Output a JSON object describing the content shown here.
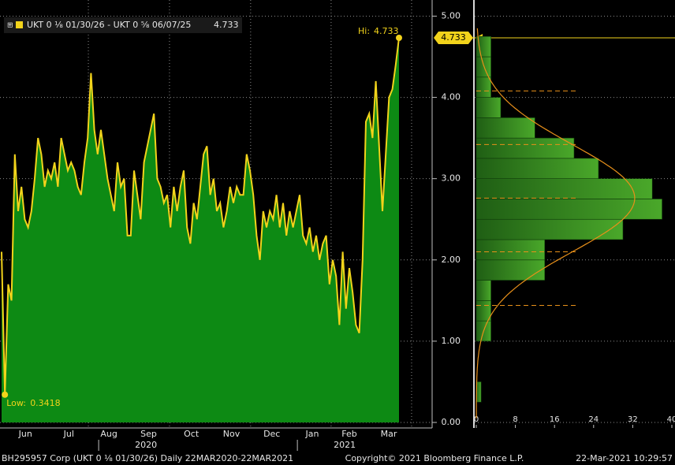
{
  "chart_data": [
    {
      "type": "area-line",
      "legend": "UKT 0 ⅛ 01/30/26 - UKT 0 ⅝ 06/07/25",
      "hi_label": "Hi:",
      "low_label": "Low:",
      "color": "#f2d31b",
      "fill": "#0d8a14",
      "values": [
        2.1,
        0.3418,
        1.7,
        1.5,
        3.3,
        2.6,
        2.9,
        2.5,
        2.4,
        2.6,
        3.0,
        3.5,
        3.3,
        2.9,
        3.1,
        3.0,
        3.2,
        2.9,
        3.5,
        3.3,
        3.1,
        3.2,
        3.1,
        2.9,
        2.8,
        3.2,
        3.5,
        4.3,
        3.6,
        3.3,
        3.6,
        3.3,
        3.0,
        2.8,
        2.6,
        3.2,
        2.9,
        3.0,
        2.3,
        2.3,
        3.1,
        2.8,
        2.5,
        3.2,
        3.4,
        3.6,
        3.8,
        3.0,
        2.9,
        2.7,
        2.8,
        2.4,
        2.9,
        2.6,
        2.9,
        3.1,
        2.4,
        2.2,
        2.7,
        2.5,
        2.9,
        3.3,
        3.4,
        2.8,
        3.0,
        2.6,
        2.7,
        2.4,
        2.6,
        2.9,
        2.7,
        2.9,
        2.8,
        2.8,
        3.3,
        3.1,
        2.8,
        2.3,
        2.0,
        2.6,
        2.4,
        2.6,
        2.5,
        2.8,
        2.4,
        2.7,
        2.3,
        2.6,
        2.4,
        2.6,
        2.8,
        2.3,
        2.2,
        2.4,
        2.1,
        2.3,
        2.0,
        2.2,
        2.3,
        1.7,
        2.0,
        1.8,
        1.2,
        2.1,
        1.4,
        1.9,
        1.6,
        1.2,
        1.1,
        2.0,
        3.7,
        3.8,
        3.5,
        4.2,
        3.4,
        2.6,
        3.3,
        4.0,
        4.1,
        4.4,
        4.733
      ],
      "xlim": [
        0,
        130
      ],
      "xticks": [
        {
          "value": 7.2,
          "label": "Jun"
        },
        {
          "value": 20.3,
          "label": "Jul"
        },
        {
          "value": 32.4,
          "label": "Aug"
        },
        {
          "value": 44.4,
          "label": "Sep"
        },
        {
          "value": 57.3,
          "label": "Oct"
        },
        {
          "value": 69.4,
          "label": "Nov"
        },
        {
          "value": 81.6,
          "label": "Dec"
        },
        {
          "value": 93.8,
          "label": "Jan"
        },
        {
          "value": 105,
          "label": "Feb"
        },
        {
          "value": 116.9,
          "label": "Mar"
        }
      ],
      "xyears": [
        {
          "value": 43.6,
          "label": "2020"
        },
        {
          "value": 103.6,
          "label": "2021"
        }
      ],
      "xgrid": [
        26.2,
        50.7,
        75.2,
        99.5,
        123.8
      ],
      "ylim": [
        0,
        5.15
      ],
      "yticks": [
        {
          "value": 0,
          "label": "0.00"
        },
        {
          "value": 1,
          "label": "1.00"
        },
        {
          "value": 2,
          "label": "2.00"
        },
        {
          "value": 3,
          "label": "3.00"
        },
        {
          "value": 4,
          "label": "4.00"
        },
        {
          "value": 5,
          "label": "5.00"
        }
      ],
      "grid": true
    },
    {
      "type": "histogram",
      "bins": [
        0.25,
        0.5,
        0.75,
        1.0,
        1.25,
        1.5,
        1.75,
        2.0,
        2.25,
        2.5,
        2.75,
        3.0,
        3.25,
        3.5,
        3.75,
        4.0,
        4.25,
        4.5,
        4.75
      ],
      "values": [
        1,
        0,
        0,
        3,
        3,
        3,
        14,
        14,
        30,
        38,
        36,
        25,
        20,
        12,
        5,
        3,
        3,
        3
      ],
      "fit": {
        "mean": 2.76,
        "sd": 0.66,
        "peak": 32.4
      },
      "curve_color": "#e8901a",
      "xlim": [
        0,
        40
      ],
      "xticks": [
        0,
        8,
        16,
        24,
        32,
        40
      ]
    }
  ],
  "footer": {
    "left": "BH295957 Corp (UKT 0 ⅛ 01/30/26) Daily 22MAR2020-22MAR2021",
    "center": "Copyright© 2021 Bloomberg Finance L.P.",
    "right": "22-Mar-2021 10:29:57"
  }
}
